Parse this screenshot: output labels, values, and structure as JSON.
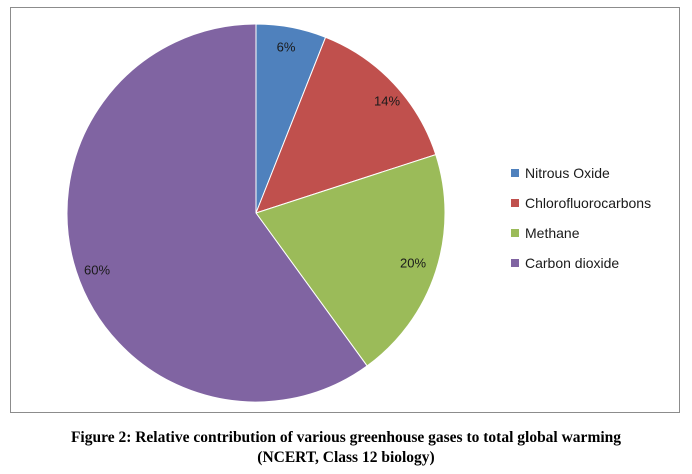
{
  "chart_data": {
    "type": "pie",
    "categories": [
      "Nitrous Oxide",
      "Chlorofluorocarbons",
      "Methane",
      "Carbon dioxide"
    ],
    "values": [
      6,
      14,
      20,
      60
    ],
    "data_labels": [
      "6%",
      "14%",
      "20%",
      "60%"
    ],
    "colors": [
      "#4f81bd",
      "#c0504d",
      "#9bbb59",
      "#8064a2"
    ],
    "start": "12 o'clock, clockwise",
    "legend_position": "right"
  },
  "caption": {
    "line1": "Figure 2: Relative contribution of various greenhouse gases to total global warming",
    "line2": "(NCERT, Class 12 biology)"
  }
}
